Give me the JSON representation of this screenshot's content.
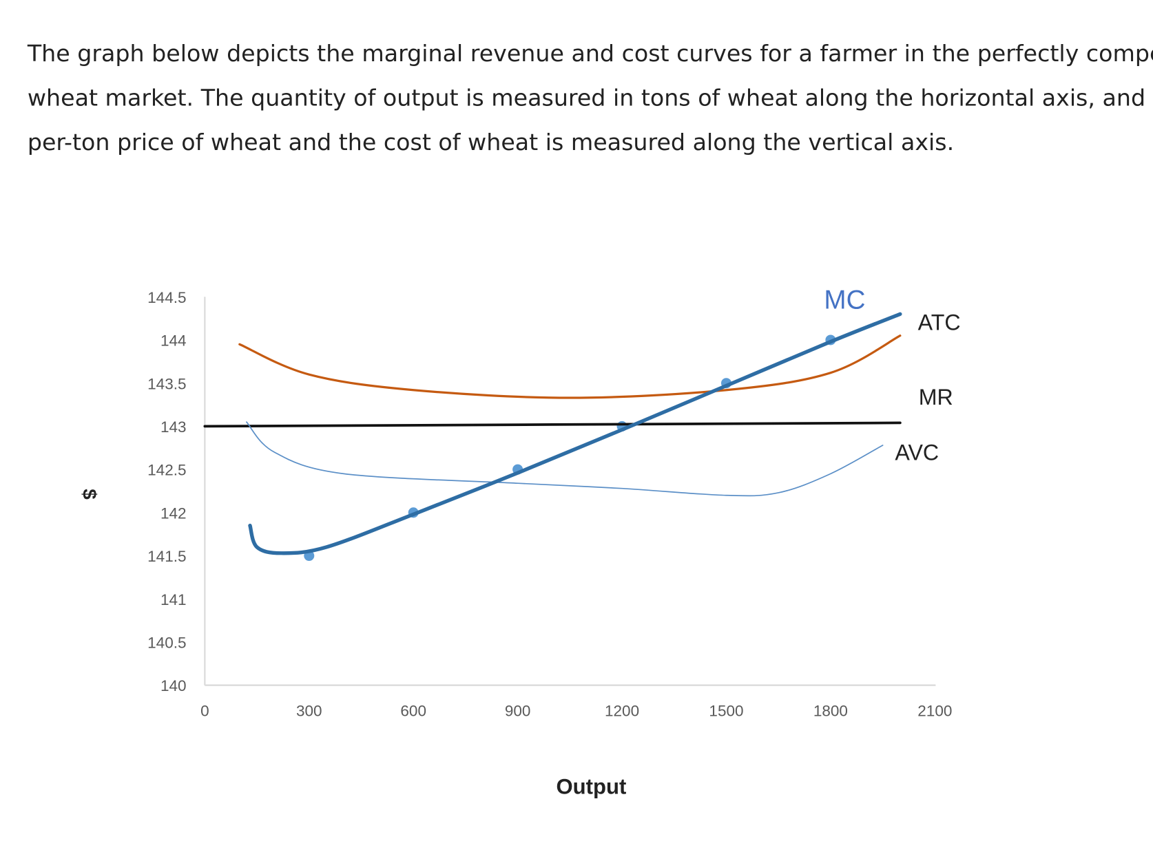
{
  "question": {
    "lines": [
      "The graph below depicts the marginal revenue and cost curves for a farmer in the perfectly competitive",
      "wheat market. The quantity of output is measured in tons of wheat along the horizontal axis, and the",
      "per-ton price of wheat and the cost of wheat  is measured along the vertical axis."
    ]
  },
  "chart_data": {
    "type": "line",
    "title": "",
    "xlabel": "Output",
    "ylabel": "$",
    "xlim": [
      0,
      2100
    ],
    "ylim": [
      140,
      144.5
    ],
    "xticks": [
      "0",
      "300",
      "600",
      "900",
      "1200",
      "1500",
      "1800",
      "2100"
    ],
    "yticks": [
      "144.5",
      "144",
      "143.5",
      "143",
      "142.5",
      "142",
      "141.5",
      "141",
      "140.5",
      "140"
    ],
    "grid": false,
    "series": [
      {
        "name": "MC",
        "color": "#2e6da4",
        "label_color": "#4472c4",
        "width": 5,
        "x": [
          130,
          150,
          220,
          350,
          600,
          900,
          1200,
          1500,
          1800,
          2000
        ],
        "y": [
          141.85,
          141.6,
          141.53,
          141.6,
          141.98,
          142.46,
          142.96,
          143.47,
          143.98,
          144.3
        ]
      },
      {
        "name": "MC points",
        "color": "#5b9bd5",
        "markers_only": true,
        "x": [
          300,
          600,
          900,
          1200,
          1500,
          1800
        ],
        "y": [
          141.5,
          142.0,
          142.5,
          143.0,
          143.5,
          144.0
        ]
      },
      {
        "name": "ATC",
        "color": "#c55a11",
        "width": 3,
        "x": [
          100,
          300,
          600,
          1050,
          1500,
          1800,
          2000
        ],
        "y": [
          143.95,
          143.6,
          143.42,
          143.33,
          143.42,
          143.62,
          144.05
        ]
      },
      {
        "name": "MR",
        "color": "#111111",
        "width": 3.5,
        "x": [
          0,
          2000
        ],
        "y": [
          143.0,
          143.04
        ]
      },
      {
        "name": "AVC",
        "color": "#5b8fc7",
        "width": 1.6,
        "x": [
          120,
          200,
          400,
          900,
          1200,
          1500,
          1650,
          1800,
          1950
        ],
        "y": [
          143.05,
          142.7,
          142.45,
          142.34,
          142.28,
          142.2,
          142.23,
          142.45,
          142.78
        ]
      }
    ],
    "annotations": [
      {
        "text": "MC"
      },
      {
        "text": "ATC"
      },
      {
        "text": "MR"
      },
      {
        "text": "AVC"
      }
    ]
  }
}
